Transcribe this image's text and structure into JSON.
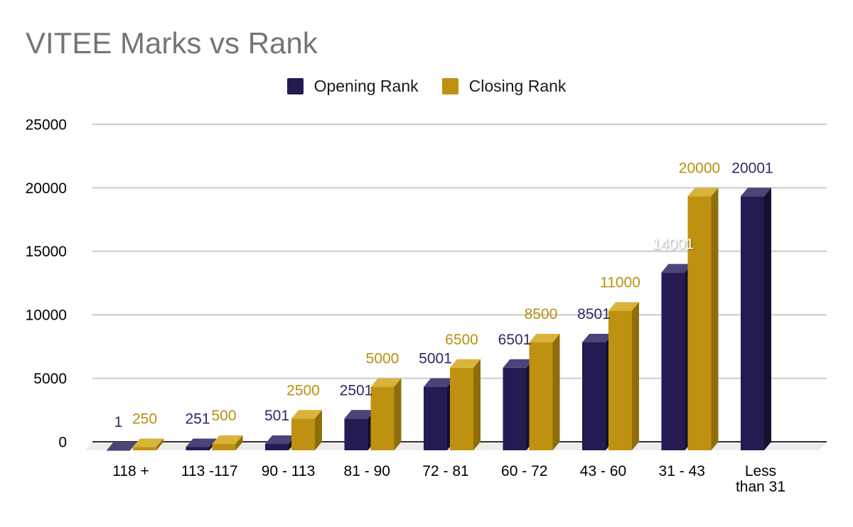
{
  "title": "VITEE Marks vs Rank",
  "legend": {
    "items": [
      {
        "label": "Opening Rank",
        "color": "#261a53"
      },
      {
        "label": "Closing Rank",
        "color": "#bf9110"
      }
    ]
  },
  "chart_data": {
    "type": "bar",
    "variant": "3d-column-grouped",
    "title": "VITEE Marks vs Rank",
    "categories": [
      "118 +",
      "113 -117",
      "90 - 113",
      "81 - 90",
      "72 - 81",
      "60 - 72",
      "43 - 60",
      "31 - 43",
      "Less\nthan 31"
    ],
    "series": [
      {
        "name": "Opening Rank",
        "values": [
          1,
          251,
          501,
          2501,
          5001,
          6501,
          8501,
          14001,
          20001
        ]
      },
      {
        "name": "Closing Rank",
        "values": [
          250,
          500,
          2500,
          5000,
          6500,
          8500,
          11000,
          20000,
          null
        ]
      }
    ],
    "y_ticks": [
      0,
      5000,
      10000,
      15000,
      20000,
      25000
    ],
    "ylim": [
      0,
      25000
    ],
    "grid": true,
    "legend_position": "top",
    "data_labels_visible": true,
    "label_color_overrides": {
      "Opening Rank": {
        "7": "#ffffff"
      }
    }
  },
  "colors": {
    "background": "#ffffff",
    "title_text": "#757575",
    "tick_text": "#000000",
    "grid_line": "#cccccc",
    "baseline": "#333333",
    "floor": "#ececec",
    "series": {
      "Opening Rank": {
        "front": "#261a53",
        "top": "#4c4379",
        "side": "#15102f",
        "label": "#302866"
      },
      "Closing Rank": {
        "front": "#bf9110",
        "top": "#d9b43b",
        "side": "#8f6d0b",
        "label": "#b8900f"
      }
    }
  }
}
